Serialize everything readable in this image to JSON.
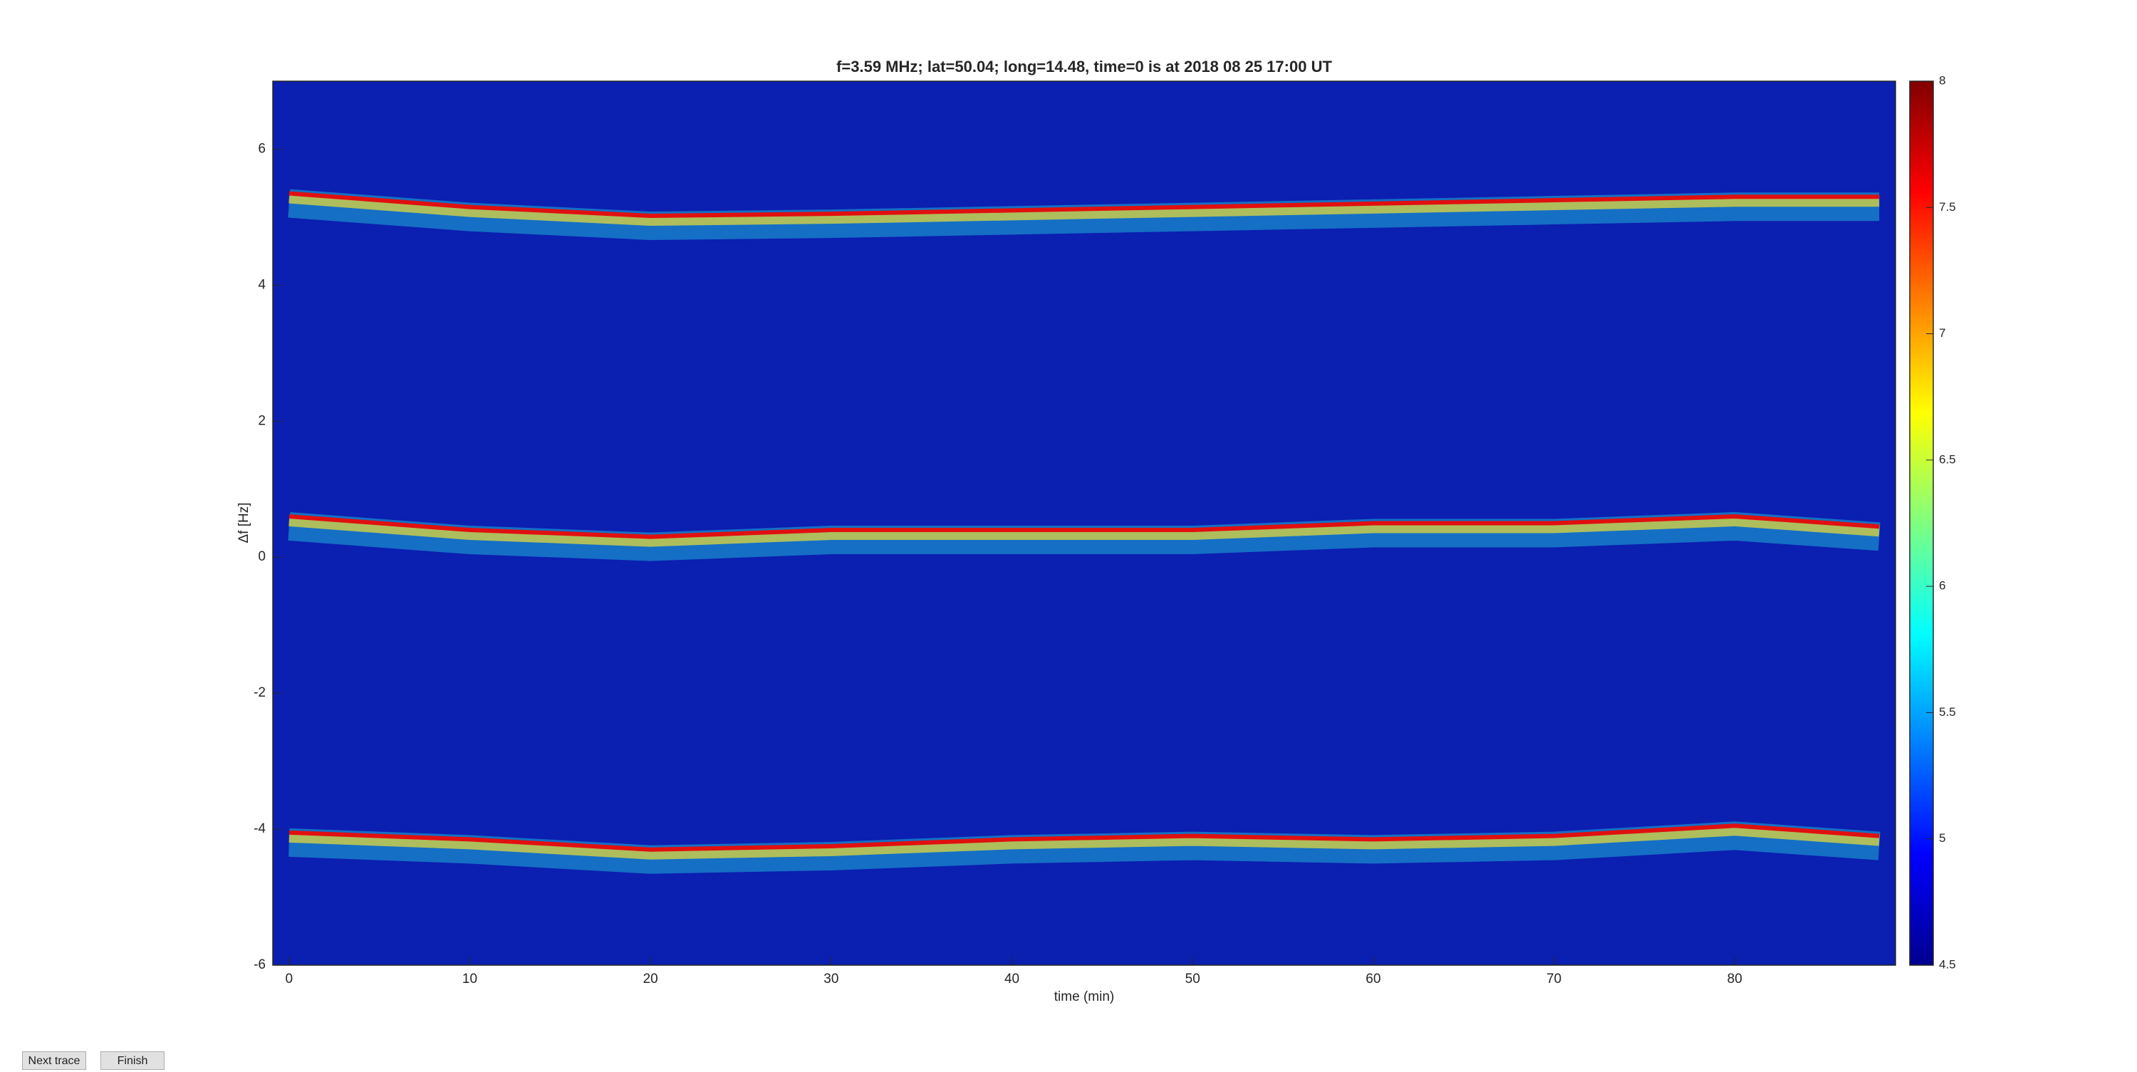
{
  "chart_data": {
    "type": "spectrogram",
    "title": "f=3.59 MHz;  lat=50.04; long=14.48, time=0 is at 2018 08 25 17:00 UT",
    "x_label": "time (min)",
    "y_label": "Δf [Hz]",
    "xlim": [
      -0.9,
      88.9
    ],
    "xticks": [
      0,
      10,
      20,
      30,
      40,
      50,
      60,
      70,
      80
    ],
    "ylim": [
      -6,
      7
    ],
    "yticks": [
      -6,
      -4,
      -2,
      0,
      2,
      4,
      6
    ],
    "x": [
      0,
      10,
      20,
      30,
      40,
      50,
      60,
      70,
      80,
      88
    ],
    "series": [
      {
        "color": "#e01010",
        "values": [
          5.35,
          5.15,
          5.02,
          5.05,
          5.1,
          5.15,
          5.2,
          5.25,
          5.3,
          5.3
        ]
      },
      {
        "color": "#e01010",
        "values": [
          0.6,
          0.4,
          0.3,
          0.4,
          0.4,
          0.4,
          0.5,
          0.5,
          0.6,
          0.45
        ]
      },
      {
        "color": "#e01010",
        "values": [
          -4.05,
          -4.15,
          -4.3,
          -4.25,
          -4.15,
          -4.1,
          -4.15,
          -4.1,
          -3.95,
          -4.1
        ]
      }
    ],
    "colorbar": {
      "lim": [
        4.5,
        8
      ],
      "ticks": [
        4.5,
        5,
        5.5,
        6,
        6.5,
        7,
        7.5,
        8
      ]
    }
  },
  "buttons": [
    "Next trace",
    "Finish"
  ]
}
